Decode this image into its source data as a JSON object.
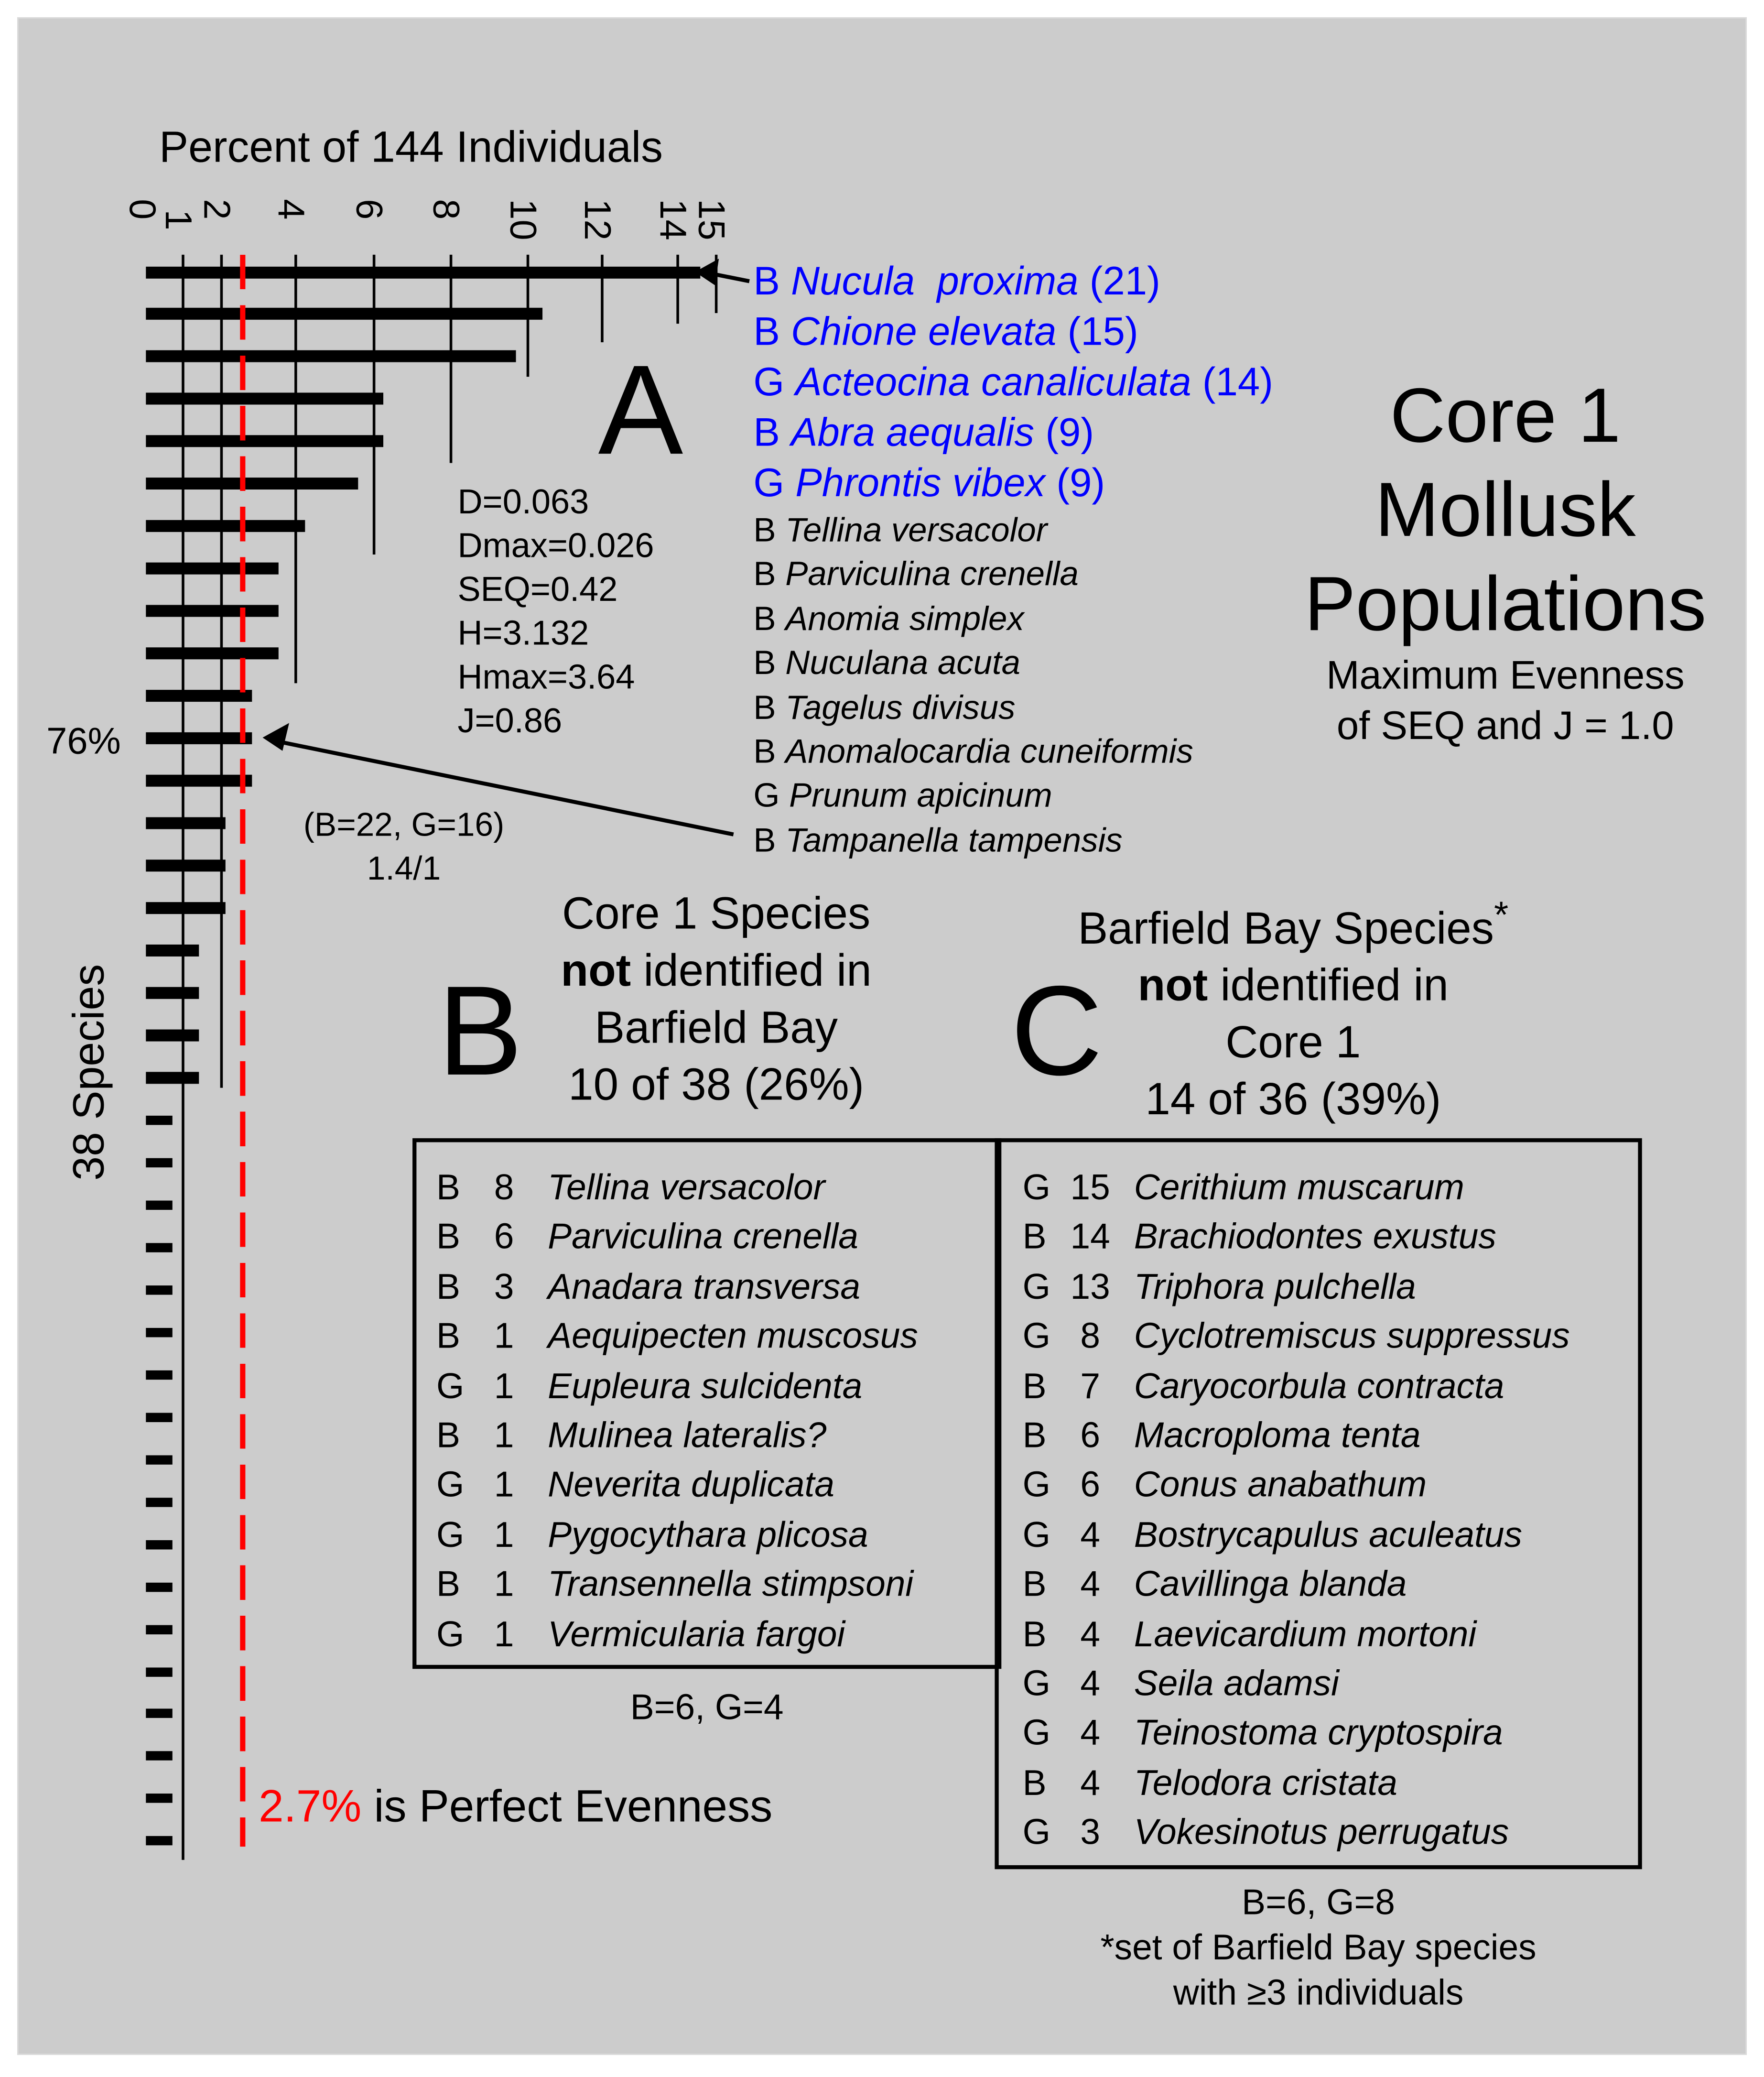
{
  "chart_data": {
    "type": "bar",
    "orientation": "horizontal",
    "title": "Core 1 Mollusk Populations",
    "subtitle": "Maximum Evenness of SEQ and J = 1.0",
    "xlabel": "Percent of 144 Individuals",
    "ylabel": "38 Species",
    "xlim": [
      0,
      15
    ],
    "x_ticks": [
      "0",
      "1",
      "2",
      "4",
      "6",
      "8",
      "10",
      "12",
      "14",
      "15"
    ],
    "total_individuals": 144,
    "total_species": 38,
    "reference_line": {
      "value": 2.7,
      "label": "2.7% is Perfect Evenness",
      "color": "#ff0000",
      "style": "dashed"
    },
    "cumulative_marker": {
      "label": "76%",
      "at_rank": 12
    },
    "counts": [
      21,
      15,
      14,
      9,
      9,
      8,
      6,
      5,
      5,
      5,
      4,
      4,
      4,
      3,
      3,
      3,
      2,
      2,
      2,
      2,
      1,
      1,
      1,
      1,
      1,
      1,
      1,
      1,
      1,
      1,
      1,
      1,
      1,
      1,
      1,
      1,
      1,
      1
    ],
    "values": [
      14.58,
      10.42,
      9.72,
      6.25,
      6.25,
      5.56,
      4.17,
      3.47,
      3.47,
      3.47,
      2.78,
      2.78,
      2.78,
      2.08,
      2.08,
      2.08,
      1.39,
      1.39,
      1.39,
      1.39,
      0.69,
      0.69,
      0.69,
      0.69,
      0.69,
      0.69,
      0.69,
      0.69,
      0.69,
      0.69,
      0.69,
      0.69,
      0.69,
      0.69,
      0.69,
      0.69,
      0.69,
      0.69
    ],
    "grid": true
  },
  "axis": {
    "xlabel": "Percent of 144 Individuals",
    "ylabel": "38 Species",
    "cumulative_label": "76%",
    "ticks": [
      {
        "label": "0",
        "x": 110
      },
      {
        "label": "1",
        "x": 137
      },
      {
        "label": "2",
        "x": 166
      },
      {
        "label": "4",
        "x": 222
      },
      {
        "label": "6",
        "x": 281
      },
      {
        "label": "8",
        "x": 339
      },
      {
        "label": "10",
        "x": 397
      },
      {
        "label": "12",
        "x": 453
      },
      {
        "label": "14",
        "x": 510
      },
      {
        "label": "15",
        "x": 539
      }
    ]
  },
  "panel_a": {
    "letter": "A",
    "stats": [
      "D=0.063",
      "Dmax=0.026",
      "SEQ=0.42",
      "H=3.132",
      "Hmax=3.64",
      "J=0.86"
    ],
    "ratio_line1": "(B=22, G=16)",
    "ratio_line2": "1.4/1",
    "top_species": [
      {
        "group": "B",
        "name": "Nucula  proxima",
        "count": "(21)"
      },
      {
        "group": "B",
        "name": "Chione elevata",
        "count": "(15)"
      },
      {
        "group": "G",
        "name": "Acteocina canaliculata",
        "count": "(14)"
      },
      {
        "group": "B",
        "name": "Abra aequalis",
        "count": "(9)"
      },
      {
        "group": "G",
        "name": "Phrontis vibex",
        "count": "(9)"
      }
    ],
    "other_species": [
      {
        "group": "B",
        "name": "Tellina versacolor"
      },
      {
        "group": "B",
        "name": "Parviculina crenella"
      },
      {
        "group": "B",
        "name": "Anomia simplex"
      },
      {
        "group": "B",
        "name": "Nuculana acuta"
      },
      {
        "group": "B",
        "name": "Tagelus divisus"
      },
      {
        "group": "B",
        "name": "Anomalocardia cuneiformis"
      },
      {
        "group": "G",
        "name": "Prunum apicinum"
      },
      {
        "group": "B",
        "name": "Tampanella tampensis"
      }
    ]
  },
  "title": {
    "line1": "Core 1",
    "line2": "Mollusk",
    "line3": "Populations",
    "sub1": "Maximum Evenness",
    "sub2": "of SEQ and J = 1.0"
  },
  "panel_b": {
    "letter": "B",
    "header1": "Core 1 Species",
    "header2_bold": "not",
    "header2_rest": " identified in",
    "header3": "Barfield Bay",
    "header4": "10 of 38 (26%)",
    "rows": [
      {
        "group": "B",
        "count": "8",
        "name": "Tellina versacolor"
      },
      {
        "group": "B",
        "count": "6",
        "name": "Parviculina crenella"
      },
      {
        "group": "B",
        "count": "3",
        "name": "Anadara transversa"
      },
      {
        "group": "B",
        "count": "1",
        "name": "Aequipecten muscosus"
      },
      {
        "group": "G",
        "count": "1",
        "name": "Eupleura sulcidenta"
      },
      {
        "group": "B",
        "count": "1",
        "name": "Mulinea lateralis?"
      },
      {
        "group": "G",
        "count": "1",
        "name": "Neverita duplicata"
      },
      {
        "group": "G",
        "count": "1",
        "name": "Pygocythara plicosa"
      },
      {
        "group": "B",
        "count": "1",
        "name": "Transennella stimpsoni"
      },
      {
        "group": "G",
        "count": "1",
        "name": "Vermicularia fargoi"
      }
    ],
    "footer": "B=6, G=4"
  },
  "panel_c": {
    "letter": "C",
    "header1": "Barfield Bay Species",
    "header1_sup": "*",
    "header2_bold": "not",
    "header2_rest": " identified in",
    "header3": "Core 1",
    "header4": "14 of 36 (39%)",
    "rows": [
      {
        "group": "G",
        "count": "15",
        "name": "Cerithium muscarum"
      },
      {
        "group": "B",
        "count": "14",
        "name": "Brachiodontes exustus"
      },
      {
        "group": "G",
        "count": "13",
        "name": "Triphora pulchella"
      },
      {
        "group": "G",
        "count": "8",
        "name": "Cyclotremiscus suppressus"
      },
      {
        "group": "B",
        "count": "7",
        "name": "Caryocorbula contracta"
      },
      {
        "group": "B",
        "count": "6",
        "name": "Macroploma tenta"
      },
      {
        "group": "G",
        "count": "6",
        "name": "Conus anabathum"
      },
      {
        "group": "G",
        "count": "4",
        "name": "Bostrycapulus aculeatus"
      },
      {
        "group": "B",
        "count": "4",
        "name": "Cavillinga blanda"
      },
      {
        "group": "B",
        "count": "4",
        "name": "Laevicardium mortoni"
      },
      {
        "group": "G",
        "count": "4",
        "name": "Seila adamsi"
      },
      {
        "group": "G",
        "count": "4",
        "name": "Teinostoma cryptospira"
      },
      {
        "group": "B",
        "count": "4",
        "name": "Telodora cristata"
      },
      {
        "group": "G",
        "count": "3",
        "name": "Vokesinotus perrugatus"
      }
    ],
    "footer1": "B=6, G=8",
    "footer2": "*set of Barfield Bay species",
    "footer3": "with ≥3 individuals"
  },
  "caption": {
    "value": "2.7%",
    "text": " is Perfect Evenness"
  },
  "colors": {
    "background": "#cccccc",
    "highlight_species": "#0000ff",
    "evenness_line": "#ff0000",
    "ink": "#000000"
  }
}
